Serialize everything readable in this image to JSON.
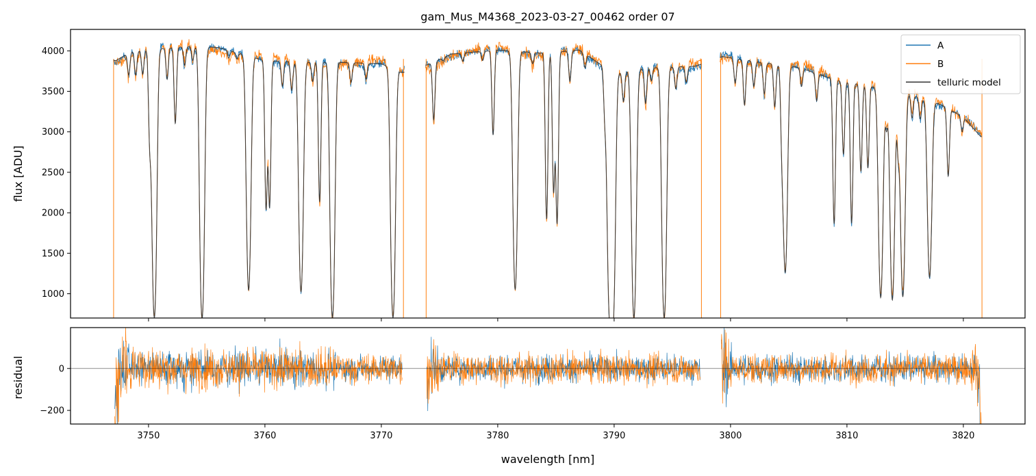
{
  "figure": {
    "title": "gam_Mus_M4368_2023-03-27_00462  order 07"
  },
  "colors": {
    "A": "#1f77b4",
    "B": "#ff7f0e",
    "telluric model": "#333333",
    "axes": "#000000",
    "zero_line": "#000000",
    "background": "#ffffff"
  },
  "chart_data": [
    {
      "type": "line",
      "panel": "top",
      "title": "gam_Mus_M4368_2023-03-27_00462  order 07",
      "xlabel": "",
      "ylabel": "flux [ADU]",
      "xlim": [
        3743.3,
        3825.3
      ],
      "ylim": [
        700,
        4265
      ],
      "yticks": [
        1000,
        1500,
        2000,
        2500,
        3000,
        3500,
        4000
      ],
      "xticks": [
        3750,
        3760,
        3770,
        3780,
        3790,
        3800,
        3810,
        3820
      ],
      "xtick_labels_shown": false,
      "legend": {
        "placement": "top-right",
        "entries": [
          "A",
          "B",
          "telluric model"
        ]
      },
      "segments": [
        [
          3747.0,
          3772.0
        ],
        [
          3773.8,
          3797.5
        ],
        [
          3799.1,
          3821.6
        ]
      ],
      "edge_spikes_B": [
        3747.0,
        3771.9,
        3773.85,
        3797.5,
        3799.15,
        3821.6
      ],
      "continuum_approx": [
        [
          3747.2,
          3880
        ],
        [
          3748.5,
          3990
        ],
        [
          3752,
          4040
        ],
        [
          3754,
          4060
        ],
        [
          3756,
          4040
        ],
        [
          3758,
          3960
        ],
        [
          3760,
          3880
        ],
        [
          3763,
          3860
        ],
        [
          3766,
          3860
        ],
        [
          3770,
          3840
        ],
        [
          3771.8,
          3730
        ],
        [
          3774,
          3830
        ],
        [
          3776,
          3960
        ],
        [
          3780,
          4010
        ],
        [
          3784,
          3970
        ],
        [
          3787,
          4010
        ],
        [
          3790,
          3720
        ],
        [
          3793,
          3790
        ],
        [
          3797,
          3810
        ],
        [
          3799.3,
          3930
        ],
        [
          3802,
          3870
        ],
        [
          3806,
          3790
        ],
        [
          3809,
          3640
        ],
        [
          3812,
          3560
        ],
        [
          3815,
          3480
        ],
        [
          3818,
          3340
        ],
        [
          3820,
          3180
        ],
        [
          3821.5,
          2940
        ]
      ],
      "absorption_lines": [
        [
          3748.3,
          3700
        ],
        [
          3748.9,
          3700
        ],
        [
          3749.5,
          3710
        ],
        [
          3750.1,
          2950
        ],
        [
          3750.5,
          700
        ],
        [
          3751.6,
          3650
        ],
        [
          3752.3,
          3100
        ],
        [
          3753.1,
          3820
        ],
        [
          3753.8,
          3880
        ],
        [
          3754.6,
          700
        ],
        [
          3756.9,
          3910
        ],
        [
          3757.6,
          3900
        ],
        [
          3758.6,
          1040
        ],
        [
          3760.1,
          2050
        ],
        [
          3760.4,
          2070
        ],
        [
          3761.5,
          3560
        ],
        [
          3762.3,
          3510
        ],
        [
          3763.1,
          1020
        ],
        [
          3764.1,
          3620
        ],
        [
          3764.7,
          2130
        ],
        [
          3765.8,
          700
        ],
        [
          3767.4,
          3610
        ],
        [
          3768.7,
          3650
        ],
        [
          3771.0,
          700
        ],
        [
          3774.5,
          3150
        ],
        [
          3775.3,
          3880
        ],
        [
          3777.0,
          3870
        ],
        [
          3778.7,
          3880
        ],
        [
          3779.6,
          2960
        ],
        [
          3781.5,
          1050
        ],
        [
          3783.0,
          3840
        ],
        [
          3784.2,
          1920
        ],
        [
          3784.8,
          2260
        ],
        [
          3785.1,
          1870
        ],
        [
          3786.2,
          3620
        ],
        [
          3787.5,
          3790
        ],
        [
          3789.2,
          3250
        ],
        [
          3789.6,
          850
        ],
        [
          3789.9,
          700
        ],
        [
          3790.8,
          3370
        ],
        [
          3791.7,
          700
        ],
        [
          3792.7,
          3350
        ],
        [
          3793.2,
          3630
        ],
        [
          3794.3,
          700
        ],
        [
          3795.3,
          3530
        ],
        [
          3796.2,
          3610
        ],
        [
          3800.4,
          3600
        ],
        [
          3801.2,
          3330
        ],
        [
          3802.0,
          3560
        ],
        [
          3802.9,
          3470
        ],
        [
          3803.8,
          3310
        ],
        [
          3804.4,
          3100
        ],
        [
          3804.7,
          1260
        ],
        [
          3806.1,
          3560
        ],
        [
          3807.4,
          3380
        ],
        [
          3808.9,
          1860
        ],
        [
          3809.7,
          2720
        ],
        [
          3810.4,
          1870
        ],
        [
          3811.2,
          2510
        ],
        [
          3811.8,
          2550
        ],
        [
          3812.9,
          950
        ],
        [
          3813.4,
          3060
        ],
        [
          3813.9,
          920
        ],
        [
          3814.4,
          2800
        ],
        [
          3814.8,
          960
        ],
        [
          3815.6,
          3170
        ],
        [
          3816.3,
          3160
        ],
        [
          3817.1,
          1200
        ],
        [
          3818.7,
          2450
        ],
        [
          3819.9,
          3000
        ]
      ]
    },
    {
      "type": "line",
      "panel": "bottom",
      "xlabel": "wavelength [nm]",
      "ylabel": "residual",
      "xlim": [
        3743.3,
        3825.3
      ],
      "ylim": [
        -265,
        195
      ],
      "yticks": [
        -200,
        0
      ],
      "xticks": [
        3750,
        3760,
        3770,
        3780,
        3790,
        3800,
        3810,
        3820
      ],
      "xtick_labels": [
        "3750",
        "3760",
        "3770",
        "3780",
        "3790",
        "3800",
        "3810",
        "3820"
      ],
      "zero_line": true,
      "series": [
        {
          "name": "A",
          "noise_amplitude": 75
        },
        {
          "name": "B",
          "noise_amplitude": 85
        }
      ],
      "segments": [
        [
          3747.1,
          3771.8
        ],
        [
          3773.9,
          3797.4
        ],
        [
          3799.2,
          3821.6
        ]
      ]
    }
  ]
}
